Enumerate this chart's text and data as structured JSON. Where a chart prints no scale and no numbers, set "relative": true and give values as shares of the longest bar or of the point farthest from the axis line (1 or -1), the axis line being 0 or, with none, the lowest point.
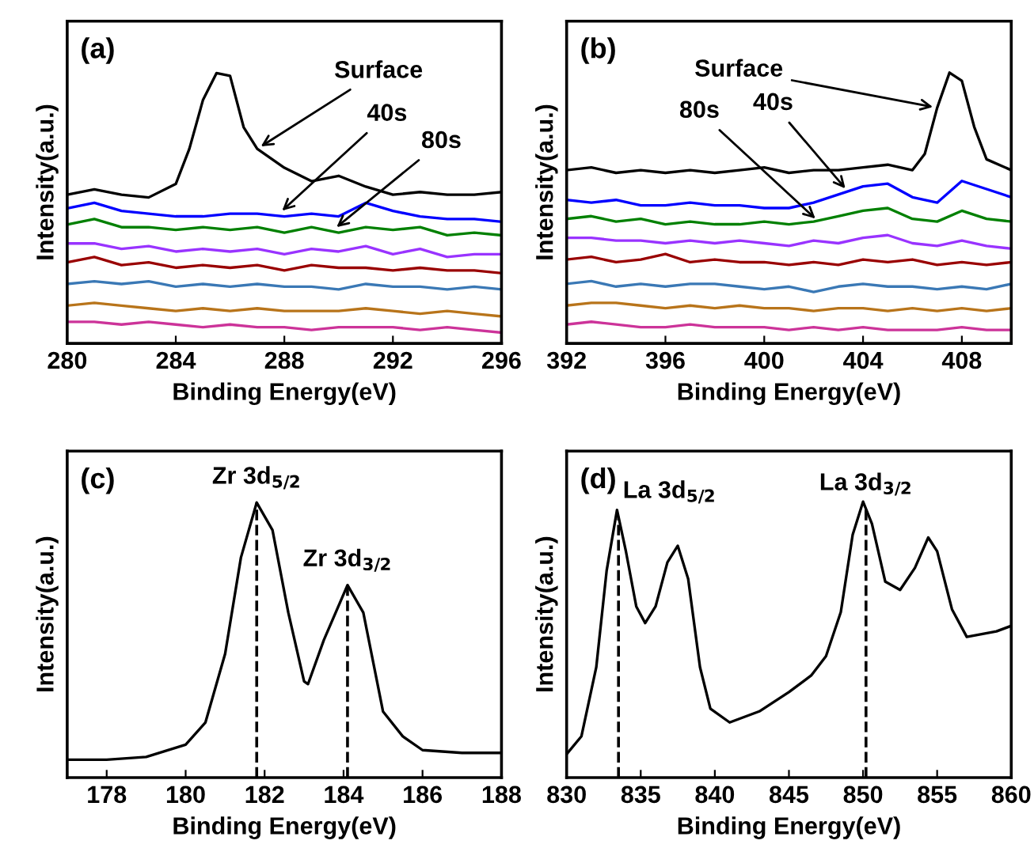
{
  "chart_data": [
    {
      "type": "line",
      "title": "(a)",
      "xlabel": "Binding Energy(eV)",
      "ylabel": "Intensity(a.u.)",
      "relative": true,
      "tick_labels": "x",
      "xlim": [
        280,
        296
      ],
      "xticks": [
        280,
        284,
        288,
        292,
        296
      ],
      "line_style": "solid",
      "series": [
        {
          "color": "#000000",
          "x": [
            280,
            281,
            282,
            283,
            284,
            284.5,
            285,
            285.5,
            286,
            286.5,
            287,
            288,
            289,
            290,
            291,
            292,
            293,
            294,
            295,
            296
          ],
          "values": [
            0.55,
            0.57,
            0.55,
            0.54,
            0.59,
            0.72,
            0.9,
            1.0,
            0.99,
            0.8,
            0.72,
            0.65,
            0.6,
            0.62,
            0.58,
            0.55,
            0.56,
            0.55,
            0.55,
            0.56
          ]
        },
        {
          "color": "#0000ff",
          "x": [
            280,
            281,
            282,
            283,
            284,
            285,
            286,
            287,
            288,
            289,
            290,
            291,
            292,
            293,
            294,
            295,
            296
          ],
          "values": [
            0.5,
            0.52,
            0.49,
            0.48,
            0.47,
            0.47,
            0.48,
            0.48,
            0.47,
            0.48,
            0.47,
            0.52,
            0.49,
            0.47,
            0.46,
            0.46,
            0.45
          ]
        },
        {
          "color": "#008000",
          "x": [
            280,
            281,
            282,
            283,
            284,
            285,
            286,
            287,
            288,
            289,
            290,
            291,
            292,
            293,
            294,
            295,
            296
          ],
          "values": [
            0.44,
            0.46,
            0.43,
            0.43,
            0.42,
            0.43,
            0.42,
            0.43,
            0.41,
            0.43,
            0.41,
            0.43,
            0.42,
            0.43,
            0.4,
            0.41,
            0.4
          ]
        },
        {
          "color": "#9933ff",
          "x": [
            280,
            281,
            282,
            283,
            284,
            285,
            286,
            287,
            288,
            289,
            290,
            291,
            292,
            293,
            294,
            295,
            296
          ],
          "values": [
            0.37,
            0.37,
            0.35,
            0.36,
            0.34,
            0.35,
            0.34,
            0.35,
            0.33,
            0.35,
            0.34,
            0.36,
            0.33,
            0.35,
            0.32,
            0.33,
            0.33
          ]
        },
        {
          "color": "#990000",
          "x": [
            280,
            281,
            282,
            283,
            284,
            285,
            286,
            287,
            288,
            289,
            290,
            291,
            292,
            293,
            294,
            295,
            296
          ],
          "values": [
            0.3,
            0.32,
            0.29,
            0.3,
            0.28,
            0.29,
            0.28,
            0.29,
            0.27,
            0.29,
            0.28,
            0.28,
            0.27,
            0.28,
            0.27,
            0.27,
            0.26
          ]
        },
        {
          "color": "#3a78b5",
          "x": [
            280,
            281,
            282,
            283,
            284,
            285,
            286,
            287,
            288,
            289,
            290,
            291,
            292,
            293,
            294,
            295,
            296
          ],
          "values": [
            0.22,
            0.23,
            0.22,
            0.23,
            0.21,
            0.22,
            0.21,
            0.22,
            0.21,
            0.21,
            0.2,
            0.22,
            0.21,
            0.21,
            0.2,
            0.21,
            0.2
          ]
        },
        {
          "color": "#b8741a",
          "x": [
            280,
            281,
            282,
            283,
            284,
            285,
            286,
            287,
            288,
            289,
            290,
            291,
            292,
            293,
            294,
            295,
            296
          ],
          "values": [
            0.14,
            0.15,
            0.14,
            0.13,
            0.12,
            0.13,
            0.12,
            0.13,
            0.12,
            0.12,
            0.12,
            0.13,
            0.12,
            0.11,
            0.12,
            0.11,
            0.1
          ]
        },
        {
          "color": "#cc3399",
          "x": [
            280,
            281,
            282,
            283,
            284,
            285,
            286,
            287,
            288,
            289,
            290,
            291,
            292,
            293,
            294,
            295,
            296
          ],
          "values": [
            0.08,
            0.08,
            0.07,
            0.08,
            0.07,
            0.06,
            0.07,
            0.06,
            0.06,
            0.05,
            0.06,
            0.06,
            0.06,
            0.05,
            0.06,
            0.05,
            0.04
          ]
        }
      ],
      "annotations": [
        {
          "text": "Surface",
          "x": 287,
          "y": 0.72
        },
        {
          "text": "40s",
          "x": 287.8,
          "y": 0.48
        },
        {
          "text": "80s",
          "x": 289.8,
          "y": 0.42
        }
      ]
    },
    {
      "type": "line",
      "title": "(b)",
      "xlabel": "Binding Energy(eV)",
      "ylabel": "Intensity(a.u.)",
      "relative": true,
      "tick_labels": "x",
      "xlim": [
        392,
        410
      ],
      "xticks": [
        392,
        396,
        400,
        404,
        408
      ],
      "line_style": "solid",
      "series": [
        {
          "color": "#000000",
          "x": [
            392,
            393,
            394,
            395,
            396,
            397,
            398,
            399,
            400,
            401,
            402,
            403,
            404,
            405,
            406,
            406.5,
            407,
            407.5,
            408,
            408.5,
            409,
            410
          ],
          "values": [
            0.64,
            0.65,
            0.63,
            0.64,
            0.63,
            0.64,
            0.63,
            0.64,
            0.65,
            0.63,
            0.64,
            0.64,
            0.65,
            0.66,
            0.64,
            0.7,
            0.87,
            1.0,
            0.97,
            0.8,
            0.68,
            0.64
          ]
        },
        {
          "color": "#0000ff",
          "x": [
            392,
            393,
            394,
            395,
            396,
            397,
            398,
            399,
            400,
            401,
            402,
            403,
            404,
            405,
            406,
            407,
            408,
            409,
            410
          ],
          "values": [
            0.53,
            0.52,
            0.53,
            0.51,
            0.51,
            0.52,
            0.51,
            0.51,
            0.5,
            0.5,
            0.52,
            0.55,
            0.58,
            0.59,
            0.54,
            0.52,
            0.6,
            0.57,
            0.54
          ]
        },
        {
          "color": "#008000",
          "x": [
            392,
            393,
            394,
            395,
            396,
            397,
            398,
            399,
            400,
            401,
            402,
            403,
            404,
            405,
            406,
            407,
            408,
            409,
            410
          ],
          "values": [
            0.46,
            0.47,
            0.45,
            0.46,
            0.44,
            0.45,
            0.44,
            0.44,
            0.45,
            0.44,
            0.45,
            0.47,
            0.49,
            0.5,
            0.46,
            0.45,
            0.49,
            0.46,
            0.45
          ]
        },
        {
          "color": "#9933ff",
          "x": [
            392,
            393,
            394,
            395,
            396,
            397,
            398,
            399,
            400,
            401,
            402,
            403,
            404,
            405,
            406,
            407,
            408,
            409,
            410
          ],
          "values": [
            0.39,
            0.39,
            0.38,
            0.38,
            0.37,
            0.38,
            0.37,
            0.38,
            0.37,
            0.36,
            0.38,
            0.37,
            0.39,
            0.4,
            0.37,
            0.36,
            0.38,
            0.36,
            0.35
          ]
        },
        {
          "color": "#990000",
          "x": [
            392,
            393,
            394,
            395,
            396,
            397,
            398,
            399,
            400,
            401,
            402,
            403,
            404,
            405,
            406,
            407,
            408,
            409,
            410
          ],
          "values": [
            0.31,
            0.32,
            0.3,
            0.31,
            0.33,
            0.3,
            0.31,
            0.3,
            0.3,
            0.29,
            0.3,
            0.29,
            0.31,
            0.3,
            0.31,
            0.29,
            0.3,
            0.29,
            0.3
          ]
        },
        {
          "color": "#3a78b5",
          "x": [
            392,
            393,
            394,
            395,
            396,
            397,
            398,
            399,
            400,
            401,
            402,
            403,
            404,
            405,
            406,
            407,
            408,
            409,
            410
          ],
          "values": [
            0.22,
            0.23,
            0.21,
            0.22,
            0.21,
            0.22,
            0.22,
            0.21,
            0.2,
            0.21,
            0.19,
            0.21,
            0.22,
            0.21,
            0.21,
            0.2,
            0.21,
            0.2,
            0.22
          ]
        },
        {
          "color": "#b8741a",
          "x": [
            392,
            393,
            394,
            395,
            396,
            397,
            398,
            399,
            400,
            401,
            402,
            403,
            404,
            405,
            406,
            407,
            408,
            409,
            410
          ],
          "values": [
            0.14,
            0.15,
            0.15,
            0.14,
            0.13,
            0.14,
            0.13,
            0.14,
            0.13,
            0.13,
            0.12,
            0.13,
            0.13,
            0.12,
            0.13,
            0.12,
            0.13,
            0.12,
            0.13
          ]
        },
        {
          "color": "#cc3399",
          "x": [
            392,
            393,
            394,
            395,
            396,
            397,
            398,
            399,
            400,
            401,
            402,
            403,
            404,
            405,
            406,
            407,
            408,
            409,
            410
          ],
          "values": [
            0.07,
            0.08,
            0.07,
            0.06,
            0.06,
            0.07,
            0.06,
            0.06,
            0.06,
            0.05,
            0.06,
            0.05,
            0.06,
            0.05,
            0.05,
            0.05,
            0.06,
            0.05,
            0.05
          ]
        }
      ],
      "annotations": [
        {
          "text": "Surface",
          "x": 407,
          "y": 0.87
        },
        {
          "text": "40s",
          "x": 403.4,
          "y": 0.56
        },
        {
          "text": "80s",
          "x": 402.2,
          "y": 0.45
        }
      ]
    },
    {
      "type": "line",
      "title": "(c)",
      "xlabel": "Binding Energy(eV)",
      "ylabel": "Intensity(a.u.)",
      "relative": true,
      "tick_labels": "x",
      "xlim": [
        177,
        188
      ],
      "xticks": [
        178,
        180,
        182,
        184,
        186,
        188
      ],
      "line_style": "solid",
      "series": [
        {
          "color": "#000000",
          "x": [
            177,
            178,
            179,
            180,
            180.5,
            181,
            181.4,
            181.8,
            182.2,
            182.6,
            183,
            183.1,
            183.5,
            184.1,
            184.5,
            185,
            185.5,
            186,
            187,
            188
          ],
          "values": [
            0.065,
            0.065,
            0.075,
            0.12,
            0.2,
            0.45,
            0.8,
            1.0,
            0.9,
            0.6,
            0.35,
            0.34,
            0.5,
            0.7,
            0.6,
            0.24,
            0.15,
            0.1,
            0.09,
            0.09
          ]
        }
      ],
      "ref_lines": [
        {
          "axis": "x",
          "value": 181.8,
          "label": "Zr 3d$_{5/2}$",
          "line_style": "dashed",
          "color": "#000000"
        },
        {
          "axis": "x",
          "value": 184.1,
          "label": "Zr 3d$_{3/2}$",
          "line_style": "dashed",
          "color": "#000000"
        }
      ]
    },
    {
      "type": "line",
      "title": "(d)",
      "xlabel": "Binding Energy(eV)",
      "ylabel": "Intensity(a.u.)",
      "relative": true,
      "tick_labels": "x",
      "xlim": [
        830,
        860
      ],
      "xticks": [
        830,
        835,
        840,
        845,
        850,
        855,
        860
      ],
      "line_style": "solid",
      "series": [
        {
          "color": "#000000",
          "x": [
            830,
            831,
            832,
            832.7,
            833.4,
            834,
            834.7,
            835.3,
            836,
            836.8,
            837.5,
            838.2,
            839,
            839.7,
            841,
            843,
            845,
            846.5,
            847.5,
            848.5,
            849.3,
            850,
            850.6,
            851.5,
            852.5,
            853.5,
            854.4,
            855,
            856,
            857,
            858,
            859,
            860
          ],
          "values": [
            0.085,
            0.15,
            0.4,
            0.75,
            0.97,
            0.82,
            0.62,
            0.56,
            0.62,
            0.78,
            0.84,
            0.72,
            0.4,
            0.25,
            0.2,
            0.24,
            0.31,
            0.37,
            0.44,
            0.6,
            0.88,
            1.0,
            0.92,
            0.71,
            0.68,
            0.76,
            0.87,
            0.82,
            0.61,
            0.51,
            0.52,
            0.53,
            0.55
          ]
        }
      ],
      "ref_lines": [
        {
          "axis": "x",
          "value": 833.5,
          "label": "La 3d$_{5/2}$",
          "line_style": "dashed",
          "color": "#000000"
        },
        {
          "axis": "x",
          "value": 850.2,
          "label": "La 3d$_{3/2}$",
          "line_style": "dashed",
          "color": "#000000"
        }
      ]
    }
  ]
}
